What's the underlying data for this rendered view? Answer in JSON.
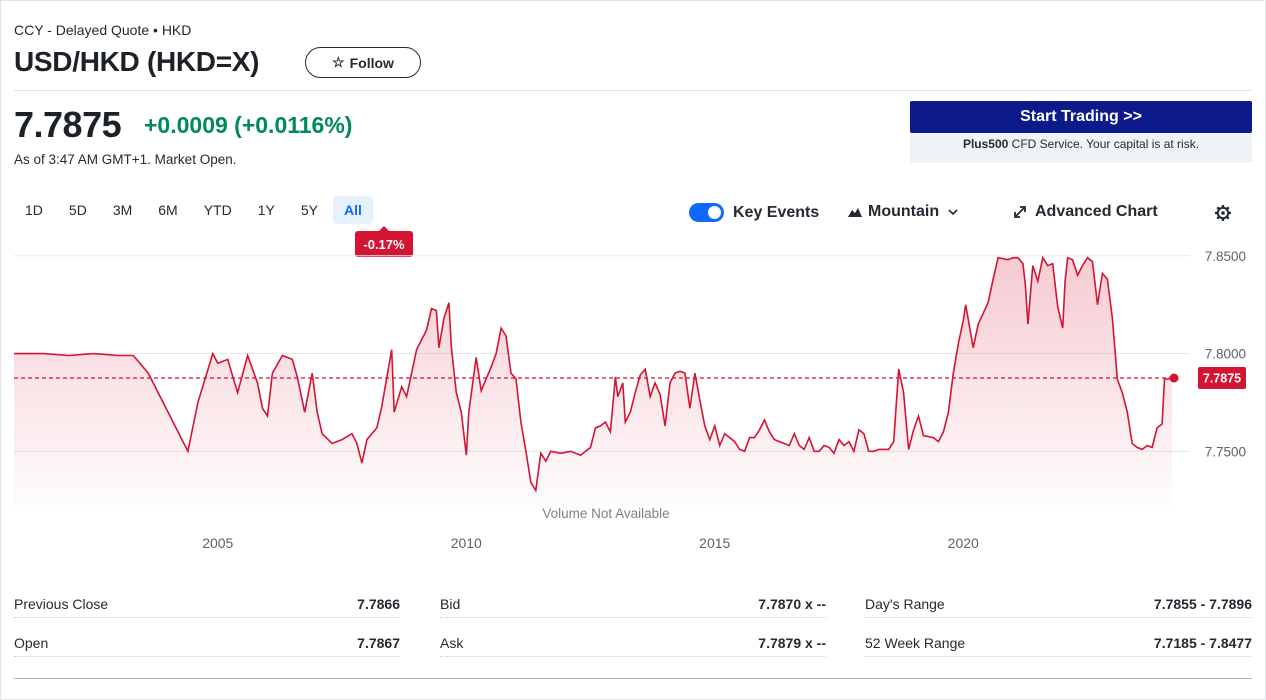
{
  "header": {
    "exchange": "CCY - Delayed Quote • HKD",
    "title": "USD/HKD (HKD=X)",
    "follow_label": "Follow"
  },
  "quote": {
    "price": "7.7875",
    "change": "+0.0009",
    "change_pct": "(+0.0116%)",
    "as_of": "As of 3:47 AM GMT+1. Market Open.",
    "change_color": "#008a5a"
  },
  "ad": {
    "button_label": "Start Trading >>",
    "note_brand": "Plus500",
    "note_text": "CFD Service. Your capital is at risk.",
    "button_color": "#0d1a8a"
  },
  "range_tabs": [
    "1D",
    "5D",
    "3M",
    "6M",
    "YTD",
    "1Y",
    "5Y",
    "All"
  ],
  "range_selected": "All",
  "range_change_badge": "-0.17%",
  "toolbar": {
    "key_events_label": "Key Events",
    "key_events_on": true,
    "chart_type_label": "Mountain",
    "advanced_label": "Advanced Chart",
    "icons": [
      "toggle-icon",
      "mountain-icon",
      "chevron-down-icon",
      "expand-icon",
      "gear-icon"
    ]
  },
  "chart_data": {
    "type": "area",
    "x_tick_labels": [
      "2005",
      "2010",
      "2015",
      "2020"
    ],
    "y_tick_labels": [
      "7.8500",
      "7.8000",
      "7.7500"
    ],
    "ylim": [
      7.72,
      7.855
    ],
    "xlim": [
      2000.9,
      2024.2
    ],
    "current_value_label": "7.7875",
    "reference_value": 7.7875,
    "volume_note": "Volume Not Available",
    "line_color": "#d31432",
    "points": [
      [
        2000.9,
        7.8
      ],
      [
        2001.5,
        7.8
      ],
      [
        2002.0,
        7.799
      ],
      [
        2002.5,
        7.8
      ],
      [
        2003.0,
        7.799
      ],
      [
        2003.3,
        7.799
      ],
      [
        2003.6,
        7.79
      ],
      [
        2004.0,
        7.77
      ],
      [
        2004.4,
        7.75
      ],
      [
        2004.6,
        7.775
      ],
      [
        2004.9,
        7.8
      ],
      [
        2005.0,
        7.795
      ],
      [
        2005.2,
        7.797
      ],
      [
        2005.4,
        7.78
      ],
      [
        2005.6,
        7.799
      ],
      [
        2005.8,
        7.785
      ],
      [
        2005.9,
        7.772
      ],
      [
        2006.0,
        7.768
      ],
      [
        2006.1,
        7.79
      ],
      [
        2006.3,
        7.799
      ],
      [
        2006.5,
        7.797
      ],
      [
        2006.6,
        7.788
      ],
      [
        2006.75,
        7.77
      ],
      [
        2006.9,
        7.79
      ],
      [
        2007.0,
        7.77
      ],
      [
        2007.1,
        7.759
      ],
      [
        2007.3,
        7.754
      ],
      [
        2007.5,
        7.756
      ],
      [
        2007.7,
        7.759
      ],
      [
        2007.8,
        7.754
      ],
      [
        2007.9,
        7.744
      ],
      [
        2008.0,
        7.756
      ],
      [
        2008.2,
        7.762
      ],
      [
        2008.3,
        7.773
      ],
      [
        2008.5,
        7.802
      ],
      [
        2008.55,
        7.77
      ],
      [
        2008.7,
        7.783
      ],
      [
        2008.8,
        7.778
      ],
      [
        2009.0,
        7.802
      ],
      [
        2009.2,
        7.812
      ],
      [
        2009.3,
        7.823
      ],
      [
        2009.4,
        7.822
      ],
      [
        2009.45,
        7.803
      ],
      [
        2009.55,
        7.818
      ],
      [
        2009.65,
        7.826
      ],
      [
        2009.7,
        7.803
      ],
      [
        2009.8,
        7.78
      ],
      [
        2009.9,
        7.77
      ],
      [
        2010.0,
        7.748
      ],
      [
        2010.05,
        7.77
      ],
      [
        2010.2,
        7.798
      ],
      [
        2010.3,
        7.781
      ],
      [
        2010.5,
        7.793
      ],
      [
        2010.6,
        7.8
      ],
      [
        2010.7,
        7.813
      ],
      [
        2010.8,
        7.809
      ],
      [
        2010.9,
        7.79
      ],
      [
        2011.0,
        7.787
      ],
      [
        2011.1,
        7.765
      ],
      [
        2011.2,
        7.75
      ],
      [
        2011.3,
        7.734
      ],
      [
        2011.4,
        7.73
      ],
      [
        2011.5,
        7.749
      ],
      [
        2011.6,
        7.745
      ],
      [
        2011.7,
        7.75
      ],
      [
        2011.9,
        7.749
      ],
      [
        2012.1,
        7.75
      ],
      [
        2012.3,
        7.748
      ],
      [
        2012.5,
        7.752
      ],
      [
        2012.6,
        7.762
      ],
      [
        2012.7,
        7.763
      ],
      [
        2012.8,
        7.765
      ],
      [
        2012.9,
        7.76
      ],
      [
        2013.0,
        7.788
      ],
      [
        2013.05,
        7.778
      ],
      [
        2013.15,
        7.785
      ],
      [
        2013.2,
        7.765
      ],
      [
        2013.3,
        7.77
      ],
      [
        2013.4,
        7.78
      ],
      [
        2013.5,
        7.789
      ],
      [
        2013.6,
        7.792
      ],
      [
        2013.7,
        7.778
      ],
      [
        2013.8,
        7.785
      ],
      [
        2013.9,
        7.779
      ],
      [
        2014.0,
        7.763
      ],
      [
        2014.1,
        7.785
      ],
      [
        2014.2,
        7.79
      ],
      [
        2014.3,
        7.791
      ],
      [
        2014.4,
        7.79
      ],
      [
        2014.5,
        7.772
      ],
      [
        2014.6,
        7.79
      ],
      [
        2014.7,
        7.776
      ],
      [
        2014.8,
        7.763
      ],
      [
        2014.9,
        7.756
      ],
      [
        2015.0,
        7.763
      ],
      [
        2015.1,
        7.753
      ],
      [
        2015.2,
        7.759
      ],
      [
        2015.3,
        7.757
      ],
      [
        2015.4,
        7.755
      ],
      [
        2015.5,
        7.751
      ],
      [
        2015.6,
        7.75
      ],
      [
        2015.7,
        7.757
      ],
      [
        2015.8,
        7.757
      ],
      [
        2015.9,
        7.761
      ],
      [
        2016.0,
        7.766
      ],
      [
        2016.1,
        7.76
      ],
      [
        2016.2,
        7.756
      ],
      [
        2016.3,
        7.755
      ],
      [
        2016.4,
        7.754
      ],
      [
        2016.5,
        7.753
      ],
      [
        2016.6,
        7.759
      ],
      [
        2016.7,
        7.753
      ],
      [
        2016.8,
        7.751
      ],
      [
        2016.9,
        7.757
      ],
      [
        2017.0,
        7.75
      ],
      [
        2017.1,
        7.75
      ],
      [
        2017.2,
        7.753
      ],
      [
        2017.3,
        7.752
      ],
      [
        2017.4,
        7.749
      ],
      [
        2017.5,
        7.756
      ],
      [
        2017.6,
        7.753
      ],
      [
        2017.7,
        7.755
      ],
      [
        2017.8,
        7.75
      ],
      [
        2017.9,
        7.761
      ],
      [
        2018.0,
        7.759
      ],
      [
        2018.1,
        7.75
      ],
      [
        2018.2,
        7.75
      ],
      [
        2018.3,
        7.751
      ],
      [
        2018.5,
        7.751
      ],
      [
        2018.6,
        7.755
      ],
      [
        2018.7,
        7.792
      ],
      [
        2018.8,
        7.78
      ],
      [
        2018.9,
        7.751
      ],
      [
        2019.0,
        7.761
      ],
      [
        2019.1,
        7.768
      ],
      [
        2019.2,
        7.758
      ],
      [
        2019.4,
        7.757
      ],
      [
        2019.5,
        7.755
      ],
      [
        2019.6,
        7.76
      ],
      [
        2019.7,
        7.77
      ],
      [
        2019.8,
        7.79
      ],
      [
        2019.9,
        7.805
      ],
      [
        2020.0,
        7.817
      ],
      [
        2020.05,
        7.825
      ],
      [
        2020.2,
        7.803
      ],
      [
        2020.3,
        7.815
      ],
      [
        2020.5,
        7.826
      ],
      [
        2020.6,
        7.838
      ],
      [
        2020.7,
        7.849
      ],
      [
        2020.9,
        7.848
      ],
      [
        2021.0,
        7.849
      ],
      [
        2021.1,
        7.849
      ],
      [
        2021.2,
        7.846
      ],
      [
        2021.25,
        7.835
      ],
      [
        2021.3,
        7.815
      ],
      [
        2021.4,
        7.845
      ],
      [
        2021.5,
        7.837
      ],
      [
        2021.6,
        7.849
      ],
      [
        2021.7,
        7.845
      ],
      [
        2021.8,
        7.846
      ],
      [
        2021.9,
        7.824
      ],
      [
        2022.0,
        7.813
      ],
      [
        2022.05,
        7.837
      ],
      [
        2022.1,
        7.849
      ],
      [
        2022.2,
        7.848
      ],
      [
        2022.3,
        7.84
      ],
      [
        2022.4,
        7.845
      ],
      [
        2022.5,
        7.849
      ],
      [
        2022.6,
        7.847
      ],
      [
        2022.7,
        7.825
      ],
      [
        2022.8,
        7.841
      ],
      [
        2022.9,
        7.838
      ],
      [
        2023.0,
        7.818
      ],
      [
        2023.1,
        7.787
      ],
      [
        2023.2,
        7.78
      ],
      [
        2023.3,
        7.77
      ],
      [
        2023.4,
        7.754
      ],
      [
        2023.5,
        7.752
      ],
      [
        2023.6,
        7.751
      ],
      [
        2023.7,
        7.753
      ],
      [
        2023.8,
        7.752
      ],
      [
        2023.9,
        7.762
      ],
      [
        2024.0,
        7.764
      ],
      [
        2024.05,
        7.787
      ],
      [
        2024.1,
        7.787
      ],
      [
        2024.2,
        7.7875
      ]
    ]
  },
  "stats": [
    {
      "label": "Previous Close",
      "value": "7.7866"
    },
    {
      "label": "Bid",
      "value": "7.7870 x --"
    },
    {
      "label": "Day's Range",
      "value": "7.7855 - 7.7896"
    },
    {
      "label": "Open",
      "value": "7.7867"
    },
    {
      "label": "Ask",
      "value": "7.7879 x --"
    },
    {
      "label": "52 Week Range",
      "value": "7.7185 - 7.8477"
    }
  ]
}
